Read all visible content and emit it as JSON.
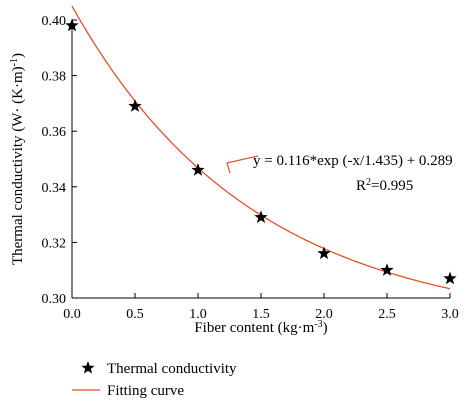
{
  "chart_data": {
    "type": "scatter",
    "xlabel": {
      "main": "Fiber content (kg·m",
      "sup": "-3",
      "end": ")"
    },
    "ylabel": {
      "main": "Thermal conductivity (W· (K·m)",
      "sup": "-1",
      "end": ")"
    },
    "xlim": [
      0.0,
      3.0
    ],
    "ylim": [
      0.3,
      0.4
    ],
    "x_ticks": [
      "0.0",
      "0.5",
      "1.0",
      "1.5",
      "2.0",
      "2.5",
      "3.0"
    ],
    "y_ticks": [
      "0.30",
      "0.32",
      "0.34",
      "0.36",
      "0.38",
      "0.40"
    ],
    "grid": false,
    "series": [
      {
        "name": "Thermal conductivity",
        "marker": "star",
        "color": "#000000",
        "x": [
          0.0,
          0.5,
          1.0,
          1.5,
          2.0,
          2.5,
          3.0
        ],
        "y": [
          0.398,
          0.369,
          0.346,
          0.329,
          0.316,
          0.31,
          0.307
        ]
      },
      {
        "name": "Fitting curve",
        "kind": "line",
        "color": "#e0522b",
        "fit": {
          "a": 0.116,
          "t": 1.435,
          "c": 0.289
        }
      }
    ],
    "annotation": {
      "equation": "y = 0.116*exp (-x/1.435) + 0.289",
      "r2_prefix": "R",
      "r2_sup": "2",
      "r2_value": "=0.995"
    },
    "legend_position": "bottom-left"
  }
}
